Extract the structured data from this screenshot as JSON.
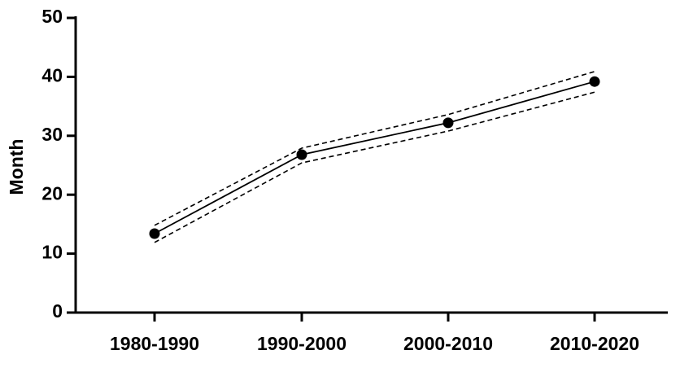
{
  "chart_data": {
    "type": "line",
    "y_label": "Month",
    "categories": [
      "1980-1990",
      "1990-2000",
      "2000-2010",
      "2010-2020"
    ],
    "series": [
      {
        "color": "#000000",
        "dashed": false,
        "markers": true,
        "values": [
          13.4,
          26.8,
          32.2,
          39.2
        ]
      },
      {
        "color": "#000000",
        "dashed": true,
        "markers": false,
        "values": [
          14.8,
          27.9,
          33.6,
          40.9
        ]
      },
      {
        "color": "#000000",
        "dashed": true,
        "markers": false,
        "values": [
          11.9,
          25.4,
          30.8,
          37.4
        ]
      }
    ],
    "ylim": [
      0,
      50
    ],
    "yticks": [
      0,
      10,
      20,
      30,
      40,
      50
    ],
    "grid": false
  }
}
